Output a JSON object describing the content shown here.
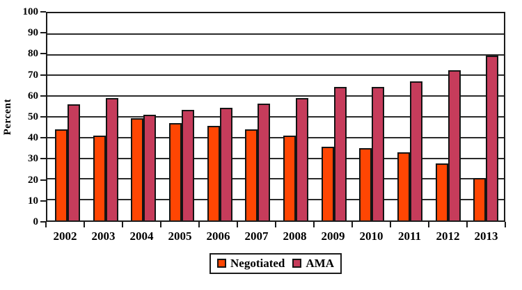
{
  "chart_data": {
    "type": "bar",
    "title": "",
    "xlabel": "",
    "ylabel": "Percent",
    "ylim": [
      0,
      100
    ],
    "y_ticks": [
      0,
      10,
      20,
      30,
      40,
      50,
      60,
      70,
      80,
      90,
      100
    ],
    "grid": "horizontal",
    "legend_position": "bottom-center",
    "categories": [
      "2002",
      "2003",
      "2004",
      "2005",
      "2006",
      "2007",
      "2008",
      "2009",
      "2010",
      "2011",
      "2012",
      "2013"
    ],
    "series": [
      {
        "name": "Negotiated",
        "color": "#FF4603",
        "values": [
          44,
          41,
          49.5,
          47,
          45.5,
          44,
          41,
          35.5,
          35,
          33,
          27.5,
          20.5
        ]
      },
      {
        "name": "AMA",
        "color": "#C63C5B",
        "values": [
          56,
          59,
          51,
          53.5,
          54.5,
          56.5,
          59,
          64.5,
          64.5,
          67,
          72.5,
          79.5
        ]
      }
    ],
    "outline_color": "#141414",
    "axis_color": "#1b1b1b",
    "background_color": "#ffffff"
  }
}
